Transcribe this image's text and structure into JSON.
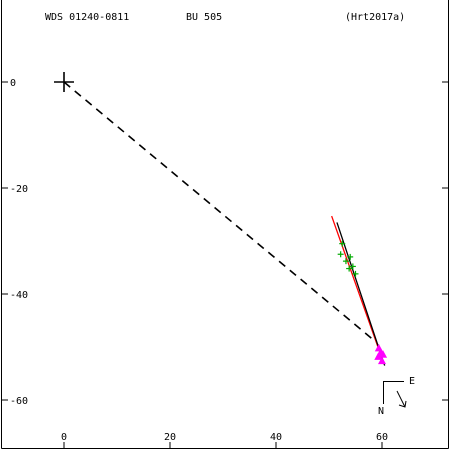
{
  "header": {
    "wds_id": "WDS 01240-0811",
    "discoverer": "BU  505",
    "reference": "(Hrt2017a)"
  },
  "compass": {
    "east_label": "E",
    "north_label": "N"
  },
  "chart_data": {
    "type": "scatter",
    "title": "",
    "xlabel": "",
    "ylabel": "",
    "xlim": [
      -12,
      73
    ],
    "ylim": [
      -69,
      15
    ],
    "x_ticks": [
      0,
      20,
      40,
      60
    ],
    "y_ticks": [
      0,
      -20,
      -40,
      -60
    ],
    "grid": false,
    "primary_marker": {
      "x": 0,
      "y": 0,
      "symbol": "+"
    },
    "series": [
      {
        "kind": "observations",
        "color": "#00aa00",
        "symbol": "+",
        "points": [
          {
            "x": 52.5,
            "y": -30.5
          },
          {
            "x": 52.2,
            "y": -32.5
          },
          {
            "x": 53.2,
            "y": -33.8
          },
          {
            "x": 54.0,
            "y": -33.0
          },
          {
            "x": 54.5,
            "y": -34.8
          },
          {
            "x": 55.0,
            "y": -36.2
          },
          {
            "x": 53.8,
            "y": -35.2
          }
        ]
      },
      {
        "kind": "predicted",
        "color": "#ff00ff",
        "symbol": "triangle",
        "points": [
          {
            "x": 59.4,
            "y": -50.2
          },
          {
            "x": 59.8,
            "y": -51.0
          },
          {
            "x": 59.3,
            "y": -51.8
          },
          {
            "x": 60.2,
            "y": -51.4
          },
          {
            "x": 60.0,
            "y": -52.6
          }
        ]
      }
    ],
    "lines": [
      {
        "kind": "separation",
        "style": "dashed",
        "color": "#000000",
        "from": [
          0,
          0
        ],
        "to": [
          58.8,
          -49.0
        ]
      },
      {
        "kind": "fit",
        "style": "solid",
        "color": "#ff0000",
        "from": [
          50.5,
          -25.3
        ],
        "to": [
          60.3,
          -53.0
        ]
      },
      {
        "kind": "fit",
        "style": "solid",
        "color": "#000000",
        "from": [
          51.5,
          -26.5
        ],
        "to": [
          60.5,
          -53.5
        ]
      }
    ]
  }
}
